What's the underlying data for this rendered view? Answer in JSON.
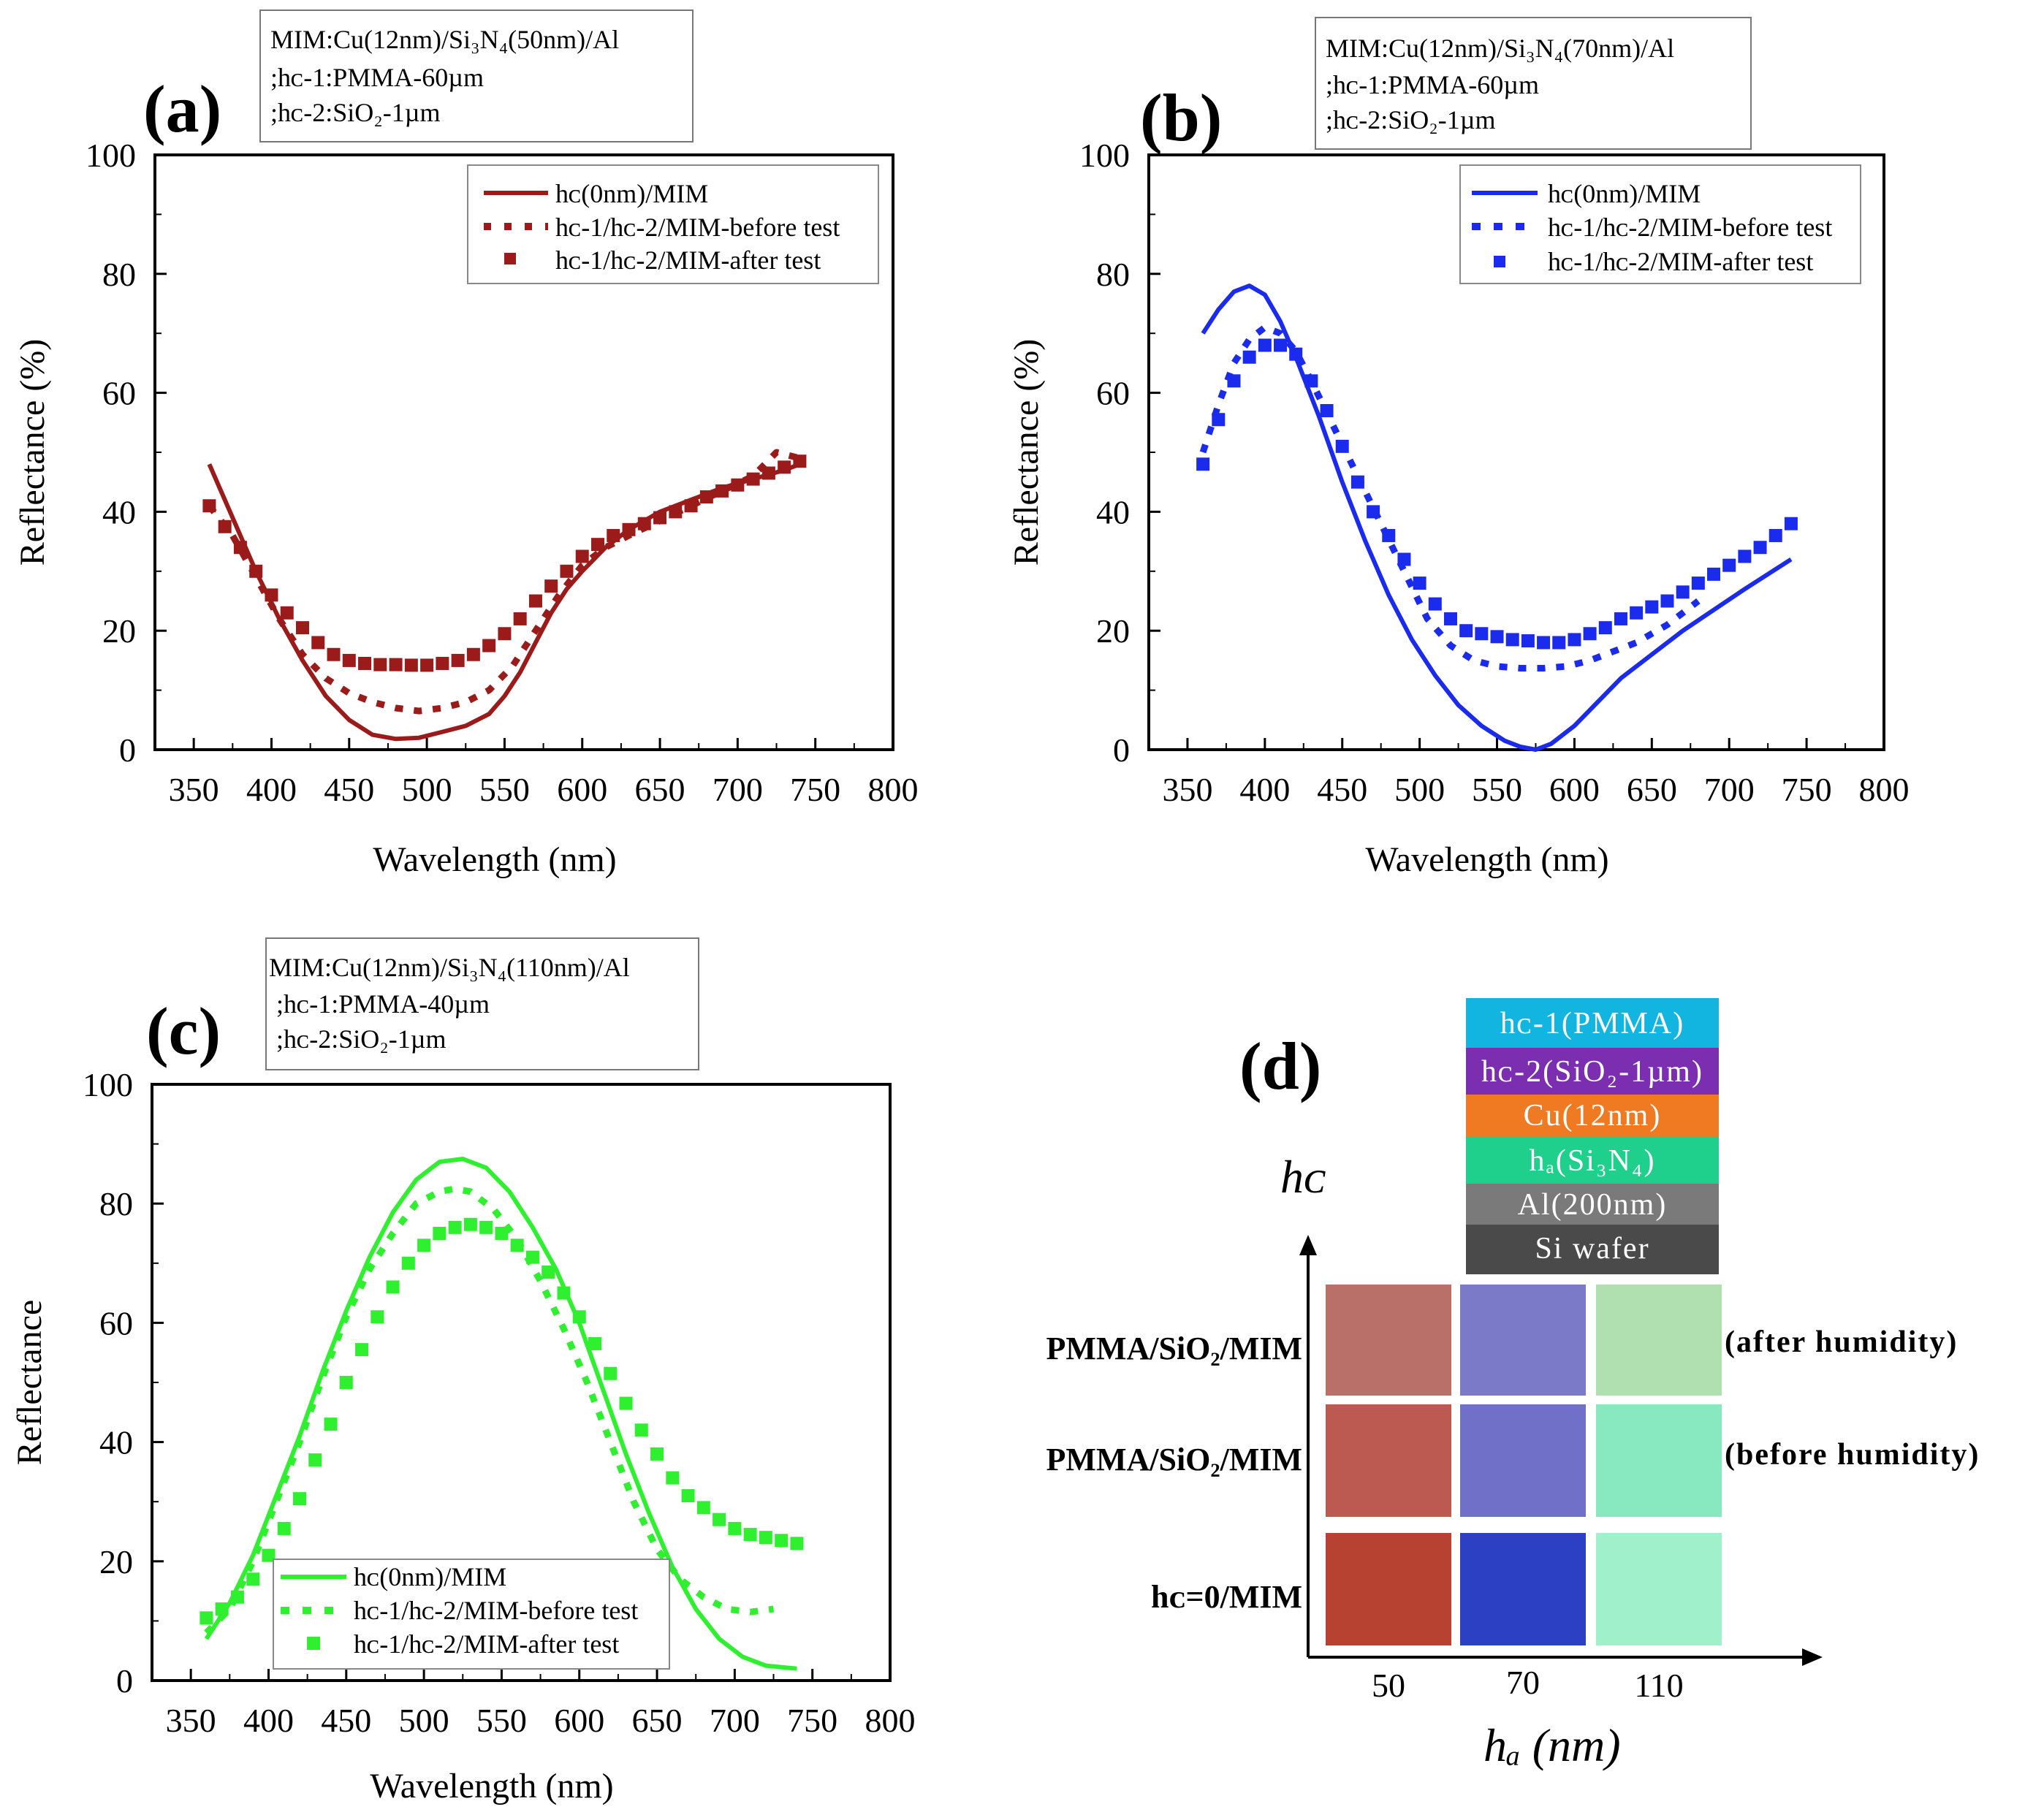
{
  "figure": {
    "charts": [
      {
        "id": "a",
        "label": "(a)",
        "info": [
          "MIM:Cu(12nm)/Si₃N₄(50nm)/Al",
          ";hᴄ-1:PMMA-60µm",
          ";hᴄ-2:SiO₂-1µm"
        ],
        "ylabel": "Reflectance (%)",
        "xlabel": "Wavelength (nm)",
        "legend": [
          "hᴄ(0nm)/MIM",
          "hᴄ-1/hᴄ-2/MIM-before test",
          "hᴄ-1/hᴄ-2/MIM-after test"
        ],
        "color": "#9b1b1b"
      },
      {
        "id": "b",
        "label": "(b)",
        "info": [
          "MIM:Cu(12nm)/Si₃N₄(70nm)/Al",
          ";hᴄ-1:PMMA-60µm",
          ";hᴄ-2:SiO₂-1µm"
        ],
        "ylabel": "Reflectance (%)",
        "xlabel": "Wavelength (nm)",
        "legend": [
          "hᴄ(0nm)/MIM",
          "hᴄ-1/hᴄ-2/MIM-before test",
          "hᴄ-1/hᴄ-2/MIM-after test"
        ],
        "color": "#1a2bee"
      },
      {
        "id": "c",
        "label": "(c)",
        "info": [
          "MIM:Cu(12nm)/Si₃N₄(110nm)/Al",
          ";hᴄ-1:PMMA-40µm",
          ";hᴄ-2:SiO₂-1µm"
        ],
        "ylabel": "Reflectance",
        "xlabel": "Wavelength (nm)",
        "legend": [
          "hᴄ(0nm)/MIM",
          "hᴄ-1/hᴄ-2/MIM-before test",
          "hᴄ-1/hᴄ-2/MIM-after test"
        ],
        "color": "#2ef02e"
      }
    ],
    "panel_d": {
      "label": "(d)",
      "y_axis_label": "hᴄ",
      "x_axis_label": "hₐ (nm)",
      "layers": [
        {
          "text": "hᴄ-1(PMMA)",
          "color": "#12b5e0"
        },
        {
          "text": "hᴄ-2(SiO₂-1µm)",
          "color": "#7b2fb0"
        },
        {
          "text": "Cu(12nm)",
          "color": "#f07a22"
        },
        {
          "text": "hₐ(Si₃N₄)",
          "color": "#1fcf8c"
        },
        {
          "text": "Al(200nm)",
          "color": "#7a7a7a"
        },
        {
          "text": "Si wafer",
          "color": "#4a4a4a"
        }
      ],
      "row_labels": [
        "PMMA/SiO₂/MIM",
        "PMMA/SiO₂/MIM",
        "hᴄ=0/MIM"
      ],
      "side_notes": [
        "(after humidity)",
        "(before humidity)"
      ],
      "col_labels": [
        "50",
        "70",
        "110"
      ],
      "swatches": [
        [
          "#b87068",
          "#7a7ac8",
          "#b0e0b0"
        ],
        [
          "#bc5a52",
          "#7070c8",
          "#88e8c0"
        ],
        [
          "#b84232",
          "#2c40c4",
          "#a0f0cc"
        ]
      ]
    }
  },
  "chart_data": [
    {
      "type": "line",
      "title": "(a)",
      "xlabel": "Wavelength (nm)",
      "ylabel": "Reflectance (%)",
      "xlim": [
        325,
        800
      ],
      "ylim": [
        0,
        100
      ],
      "xticks": [
        350,
        400,
        450,
        500,
        550,
        600,
        650,
        700,
        750,
        800
      ],
      "yticks": [
        0,
        20,
        40,
        60,
        80,
        100
      ],
      "series": [
        {
          "name": "hc(0nm)/MIM",
          "style": "solid",
          "x": [
            360,
            375,
            390,
            405,
            420,
            435,
            450,
            465,
            480,
            495,
            510,
            525,
            540,
            550,
            560,
            570,
            580,
            590,
            600,
            615,
            630,
            650,
            670,
            690,
            710,
            730,
            740
          ],
          "y": [
            48,
            39,
            30,
            22,
            15,
            9,
            5,
            2.5,
            1.8,
            2,
            3,
            4,
            6,
            9,
            13,
            18,
            23,
            27,
            30,
            34,
            37,
            40,
            42,
            44,
            45.5,
            47,
            48
          ]
        },
        {
          "name": "hc-1/hc-2/MIM-before test",
          "style": "dotted",
          "x": [
            360,
            375,
            390,
            405,
            420,
            435,
            450,
            465,
            480,
            495,
            510,
            525,
            540,
            555,
            570,
            585,
            600,
            615,
            630,
            650,
            670,
            690,
            710,
            725,
            740
          ],
          "y": [
            41,
            36,
            29,
            22,
            16,
            12,
            9.5,
            8,
            7,
            6.5,
            7,
            8,
            10,
            14,
            20,
            26,
            31,
            34,
            36,
            38.5,
            41,
            43.5,
            46,
            50,
            49
          ]
        },
        {
          "name": "hc-1/hc-2/MIM-after test",
          "style": "square",
          "x": [
            360,
            370,
            380,
            390,
            400,
            410,
            420,
            430,
            440,
            450,
            460,
            470,
            480,
            490,
            500,
            510,
            520,
            530,
            540,
            550,
            560,
            570,
            580,
            590,
            600,
            610,
            620,
            630,
            640,
            650,
            660,
            670,
            680,
            690,
            700,
            710,
            720,
            730,
            740
          ],
          "y": [
            41,
            37.5,
            34,
            30,
            26,
            23,
            20.5,
            18,
            16,
            15,
            14.5,
            14.3,
            14.3,
            14.2,
            14.2,
            14.5,
            15,
            16,
            17.5,
            19.5,
            22,
            25,
            27.5,
            30,
            32.5,
            34.5,
            36,
            37,
            38,
            39,
            40,
            41,
            42.5,
            43.5,
            44.5,
            45.5,
            46.5,
            47.5,
            48.5
          ]
        }
      ]
    },
    {
      "type": "line",
      "title": "(b)",
      "xlabel": "Wavelength (nm)",
      "ylabel": "Reflectance (%)",
      "xlim": [
        325,
        800
      ],
      "ylim": [
        0,
        100
      ],
      "xticks": [
        350,
        400,
        450,
        500,
        550,
        600,
        650,
        700,
        750,
        800
      ],
      "yticks": [
        0,
        20,
        40,
        60,
        80,
        100
      ],
      "series": [
        {
          "name": "hc(0nm)/MIM",
          "style": "solid",
          "x": [
            360,
            370,
            380,
            390,
            400,
            410,
            420,
            435,
            450,
            465,
            480,
            495,
            510,
            525,
            540,
            555,
            565,
            575,
            585,
            600,
            615,
            630,
            650,
            670,
            690,
            710,
            740
          ],
          "y": [
            70,
            74,
            77,
            78,
            76.5,
            72,
            66,
            56,
            45,
            35,
            26,
            18.5,
            12.5,
            7.5,
            4,
            1.5,
            0.5,
            0,
            1,
            4,
            8,
            12,
            16,
            20,
            23.5,
            27,
            32
          ]
        },
        {
          "name": "hc-1/hc-2/MIM-before test",
          "style": "dotted",
          "x": [
            360,
            370,
            380,
            390,
            400,
            410,
            420,
            430,
            445,
            460,
            475,
            490,
            505,
            520,
            535,
            550,
            565,
            580,
            595,
            610,
            625,
            640,
            660,
            680
          ],
          "y": [
            50,
            58,
            65,
            69,
            71,
            70,
            67,
            62,
            54,
            46,
            38,
            30,
            22,
            17.5,
            15,
            14,
            13.7,
            13.7,
            14,
            15,
            16.5,
            18,
            21,
            25
          ]
        },
        {
          "name": "hc-1/hc-2/MIM-after test",
          "style": "square",
          "x": [
            360,
            370,
            380,
            390,
            400,
            410,
            420,
            430,
            440,
            450,
            460,
            470,
            480,
            490,
            500,
            510,
            520,
            530,
            540,
            550,
            560,
            570,
            580,
            590,
            600,
            610,
            620,
            630,
            640,
            650,
            660,
            670,
            680,
            690,
            700,
            710,
            720,
            730,
            740
          ],
          "y": [
            48,
            55.5,
            62,
            66,
            68,
            68,
            66.5,
            62,
            57,
            51,
            45,
            40,
            36,
            32,
            28,
            24.5,
            22,
            20,
            19.5,
            19,
            18.5,
            18.3,
            18,
            18,
            18.5,
            19.5,
            20.5,
            22,
            23,
            24,
            25,
            26.5,
            28,
            29.5,
            31,
            32.5,
            34,
            36,
            38
          ]
        }
      ]
    },
    {
      "type": "line",
      "title": "(c)",
      "xlabel": "Wavelength (nm)",
      "ylabel": "Reflectance",
      "xlim": [
        325,
        800
      ],
      "ylim": [
        0,
        100
      ],
      "xticks": [
        350,
        400,
        450,
        500,
        550,
        600,
        650,
        700,
        750,
        800
      ],
      "yticks": [
        0,
        20,
        40,
        60,
        80,
        100
      ],
      "series": [
        {
          "name": "hc(0nm)/MIM",
          "style": "solid",
          "x": [
            360,
            375,
            390,
            405,
            420,
            435,
            450,
            465,
            480,
            495,
            510,
            525,
            540,
            555,
            570,
            585,
            600,
            615,
            630,
            645,
            660,
            675,
            690,
            705,
            720,
            740
          ],
          "y": [
            7,
            13,
            21,
            31,
            41,
            52,
            62,
            71,
            78.5,
            84,
            87,
            87.5,
            86,
            82,
            76,
            69,
            60,
            49,
            38,
            28,
            19,
            12,
            7,
            4,
            2.5,
            2
          ]
        },
        {
          "name": "hc-1/hc-2/MIM-before test",
          "style": "dotted",
          "x": [
            360,
            375,
            390,
            405,
            420,
            435,
            450,
            465,
            480,
            495,
            510,
            520,
            530,
            545,
            560,
            575,
            590,
            605,
            620,
            635,
            650,
            665,
            680,
            695,
            710,
            725
          ],
          "y": [
            8,
            12,
            20,
            30,
            40,
            51,
            61,
            69,
            75,
            80,
            82,
            82.5,
            82,
            79,
            74,
            67,
            59,
            50,
            40,
            30,
            22,
            17,
            14,
            12,
            11.5,
            12
          ]
        },
        {
          "name": "hc-1/hc-2/MIM-after test",
          "style": "square",
          "x": [
            360,
            370,
            380,
            390,
            400,
            410,
            420,
            430,
            440,
            450,
            460,
            470,
            480,
            490,
            500,
            510,
            520,
            530,
            540,
            550,
            560,
            570,
            580,
            590,
            600,
            610,
            620,
            630,
            640,
            650,
            660,
            670,
            680,
            690,
            700,
            710,
            720,
            730,
            740
          ],
          "y": [
            10.5,
            12,
            14,
            17,
            21,
            25.5,
            30.5,
            37,
            43,
            50,
            55.5,
            61,
            66,
            70,
            73,
            75,
            76,
            76.5,
            76,
            75,
            73,
            71,
            68.5,
            65,
            61,
            56.5,
            51.5,
            46.5,
            42,
            38,
            34,
            31,
            29,
            27,
            25.5,
            24.5,
            24,
            23.5,
            23
          ]
        }
      ]
    }
  ]
}
